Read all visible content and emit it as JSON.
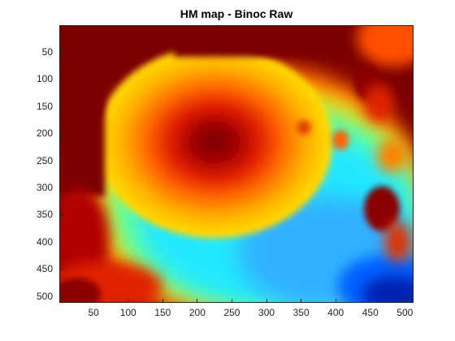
{
  "chart_data": {
    "type": "heatmap",
    "title": "HM map - Binoc Raw",
    "xlabel": "",
    "ylabel": "",
    "xlim": [
      1,
      512
    ],
    "ylim": [
      1,
      512
    ],
    "y_direction": "reversed",
    "colormap": "jet",
    "grid": false,
    "x_ticks": [
      50,
      100,
      150,
      200,
      250,
      300,
      350,
      400,
      450,
      500
    ],
    "y_ticks": [
      50,
      100,
      150,
      200,
      250,
      300,
      350,
      400,
      450,
      500
    ],
    "features": [
      {
        "kind": "peak",
        "x": 215,
        "y": 175,
        "level": "dark red"
      },
      {
        "kind": "saturated-region",
        "x_range": [
          1,
          80
        ],
        "y_range": [
          1,
          310
        ],
        "level": "dark red"
      },
      {
        "kind": "saturated-region",
        "x_range": [
          160,
          420
        ],
        "y_range": [
          1,
          70
        ],
        "level": "dark red"
      },
      {
        "kind": "blob",
        "x": 445,
        "y": 100,
        "level": "dark red"
      },
      {
        "kind": "blob",
        "x": 455,
        "y": 150,
        "level": "red"
      },
      {
        "kind": "blob",
        "x": 475,
        "y": 345,
        "level": "dark red"
      },
      {
        "kind": "low-region",
        "x": 470,
        "y": 480,
        "level": "dark blue"
      }
    ]
  }
}
